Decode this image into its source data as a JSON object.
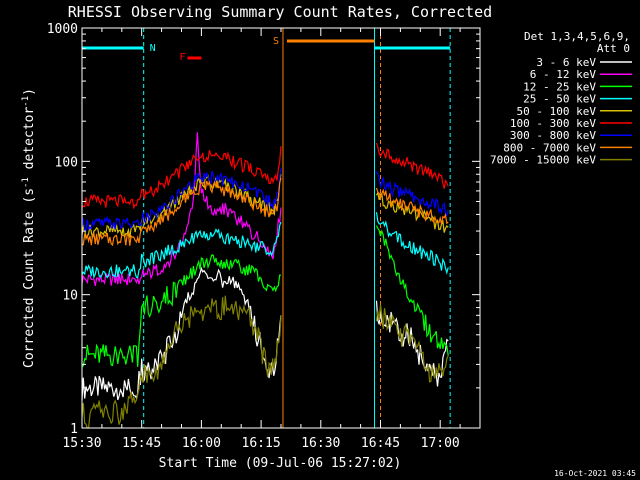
{
  "chart_data": {
    "type": "line",
    "title": "RHESSI Observing Summary Count Rates, Corrected",
    "xlabel": "Start Time (09-Jul-06 15:27:02)",
    "ylabel": "Corrected Count Rate (s⁻¹ detector⁻¹)",
    "ylabel_parts": [
      "Corrected Count Rate (s",
      "-1",
      " detector",
      "-1",
      ")"
    ],
    "yscale": "log",
    "ylim": [
      1,
      1000
    ],
    "xlim_minutes": [
      0,
      100
    ],
    "y_tick_labels": [
      {
        "value": 1,
        "label": "1"
      },
      {
        "value": 10,
        "label": "10"
      },
      {
        "value": 100,
        "label": "100"
      },
      {
        "value": 1000,
        "label": "1000"
      }
    ],
    "x_tick_labels": [
      {
        "minute": 0,
        "label": "15:30"
      },
      {
        "minute": 15,
        "label": "15:45"
      },
      {
        "minute": 30,
        "label": "16:00"
      },
      {
        "minute": 45,
        "label": "16:15"
      },
      {
        "minute": 60,
        "label": "16:30"
      },
      {
        "minute": 75,
        "label": "16:45"
      },
      {
        "minute": 90,
        "label": "17:00"
      }
    ],
    "legend_header": [
      "Det 1,3,4,5,6,9,",
      "Att 0"
    ],
    "legend_placement": "right",
    "timestamp": "16-Oct-2021 03:45",
    "annotations": [
      {
        "label": "N",
        "minute": 16,
        "color": "#00FFFF"
      },
      {
        "label": "F",
        "minute": 25.5,
        "color": "#FF0000"
      },
      {
        "label": "S",
        "minute": 50,
        "color": "#FF8000"
      }
    ],
    "data_gaps_minutes": [
      [
        50.5,
        73.5
      ]
    ],
    "night_markers_minutes": [
      15.5,
      92.5
    ],
    "night_bars": [
      [
        0,
        15.5
      ],
      [
        73.5,
        92.5
      ]
    ],
    "saa_bar_minutes": [
      51.5,
      73.5
    ],
    "saa_lines_minutes": [
      50.5,
      75
    ],
    "night_lines_minutes": [
      73.5
    ],
    "flare_bar_minutes": [
      26.5,
      30
    ],
    "series": [
      {
        "name": "3 - 6 keV",
        "color": "#FFFFFF",
        "x": [
          0,
          10,
          14,
          15,
          17,
          20,
          24,
          26,
          28,
          30,
          32,
          34,
          36,
          38,
          40,
          42,
          44,
          47,
          48.5,
          50,
          74,
          76,
          78,
          80,
          82,
          84,
          86,
          88,
          90,
          92
        ],
        "y": [
          2,
          2,
          2,
          2.8,
          2.6,
          3.2,
          5.5,
          8.5,
          11,
          15,
          13,
          14,
          12,
          13,
          10,
          8,
          5,
          2.5,
          3,
          7,
          7.5,
          6.5,
          6,
          5,
          5,
          4,
          3,
          2.5,
          2.5,
          4.5
        ]
      },
      {
        "name": "6 - 12 keV",
        "color": "#FF00FF",
        "x": [
          0,
          10,
          14,
          15,
          16,
          20,
          24,
          26,
          28,
          29,
          30,
          32,
          34,
          36,
          38,
          40,
          42,
          44,
          46,
          48,
          49,
          50
        ],
        "y": [
          13,
          13,
          13,
          14,
          14,
          16,
          21,
          28,
          50,
          160,
          60,
          45,
          40,
          45,
          38,
          35,
          30,
          28,
          22,
          20,
          28,
          45
        ]
      },
      {
        "name": "12 - 25 keV",
        "color": "#00FF00",
        "x": [
          0,
          10,
          14,
          15,
          16,
          20,
          24,
          26,
          28,
          30,
          32,
          34,
          36,
          38,
          40,
          42,
          44,
          46,
          48,
          49,
          50,
          74,
          76,
          78,
          80,
          82,
          84,
          86,
          88,
          90,
          92
        ],
        "y": [
          3.5,
          3.5,
          3.5,
          8,
          8,
          9,
          11,
          13,
          15,
          17,
          18,
          18,
          17,
          17,
          16,
          15,
          14,
          12,
          10,
          11,
          14,
          35,
          25,
          18,
          13,
          10,
          8,
          6,
          5,
          4,
          3.5
        ]
      },
      {
        "name": "25 - 50 keV",
        "color": "#00FFFF",
        "x": [
          0,
          10,
          14,
          15,
          16,
          20,
          24,
          26,
          28,
          30,
          32,
          34,
          36,
          38,
          40,
          42,
          44,
          46,
          48,
          49,
          50,
          74,
          76,
          78,
          80,
          82,
          84,
          86,
          88,
          90,
          92
        ],
        "y": [
          15,
          15,
          15,
          18,
          18,
          20,
          23,
          25,
          27,
          28,
          28,
          28,
          27,
          26,
          25,
          24,
          23,
          22,
          22,
          26,
          35,
          40,
          32,
          28,
          26,
          24,
          22,
          20,
          19,
          17,
          16
        ]
      },
      {
        "name": "50 - 100 keV",
        "color": "#D8C000",
        "x": [
          0,
          10,
          14,
          15,
          16,
          20,
          24,
          26,
          28,
          30,
          32,
          34,
          36,
          38,
          40,
          42,
          44,
          46,
          48,
          49,
          50,
          74,
          76,
          78,
          80,
          82,
          84,
          86,
          88,
          90,
          92
        ],
        "y": [
          30,
          30,
          30,
          35,
          35,
          40,
          50,
          58,
          65,
          70,
          70,
          68,
          66,
          62,
          58,
          54,
          50,
          45,
          42,
          48,
          80,
          55,
          50,
          47,
          45,
          42,
          40,
          38,
          35,
          33,
          32
        ]
      },
      {
        "name": "100 - 300 keV",
        "color": "#FF0000",
        "x": [
          0,
          10,
          14,
          15,
          16,
          20,
          24,
          26,
          28,
          30,
          32,
          34,
          36,
          38,
          40,
          42,
          44,
          46,
          48,
          49,
          50,
          74,
          76,
          78,
          80,
          82,
          84,
          86,
          88,
          90,
          92
        ],
        "y": [
          50,
          50,
          50,
          55,
          55,
          65,
          80,
          92,
          102,
          110,
          112,
          110,
          105,
          100,
          95,
          88,
          82,
          75,
          68,
          80,
          130,
          130,
          115,
          105,
          100,
          95,
          90,
          85,
          80,
          72,
          65
        ]
      },
      {
        "name": "300 - 800 keV",
        "color": "#0000FF",
        "x": [
          0,
          10,
          14,
          15,
          16,
          20,
          24,
          26,
          28,
          30,
          32,
          34,
          36,
          38,
          40,
          42,
          44,
          46,
          48,
          49,
          50,
          74,
          76,
          78,
          80,
          82,
          84,
          86,
          88,
          90,
          92
        ],
        "y": [
          34,
          34,
          34,
          38,
          38,
          44,
          55,
          63,
          70,
          75,
          76,
          74,
          72,
          70,
          66,
          62,
          57,
          52,
          47,
          55,
          90,
          75,
          68,
          62,
          58,
          55,
          52,
          50,
          48,
          45,
          43
        ]
      },
      {
        "name": "800 - 7000 keV",
        "color": "#FF8000",
        "x": [
          0,
          10,
          14,
          15,
          16,
          20,
          24,
          26,
          28,
          30,
          32,
          34,
          36,
          38,
          40,
          42,
          44,
          46,
          48,
          49,
          50,
          74,
          76,
          78,
          80,
          82,
          84,
          86,
          88,
          90,
          92
        ],
        "y": [
          26,
          26,
          26,
          30,
          30,
          36,
          46,
          53,
          60,
          65,
          65,
          63,
          61,
          58,
          55,
          51,
          47,
          43,
          40,
          46,
          75,
          60,
          55,
          50,
          47,
          45,
          43,
          41,
          39,
          37,
          35
        ]
      },
      {
        "name": "7000 - 15000 keV",
        "color": "#808000",
        "x": [
          0,
          2,
          4,
          6,
          8,
          10,
          14,
          15,
          17,
          20,
          22,
          24,
          26,
          28,
          30,
          32,
          34,
          36,
          38,
          40,
          42,
          44,
          47,
          48.5,
          50,
          74,
          76,
          78,
          80,
          82,
          84,
          86,
          88,
          90,
          92
        ],
        "y": [
          1.3,
          1.1,
          1.6,
          1.2,
          1.4,
          1.2,
          2,
          2.6,
          2.5,
          3,
          4.5,
          5.5,
          6.5,
          7,
          7,
          8,
          8,
          8,
          7.5,
          7,
          6.5,
          5,
          2.5,
          3,
          7,
          7.5,
          6.5,
          6,
          5,
          5,
          4,
          3,
          2.5,
          2.5,
          3.5
        ]
      }
    ]
  }
}
